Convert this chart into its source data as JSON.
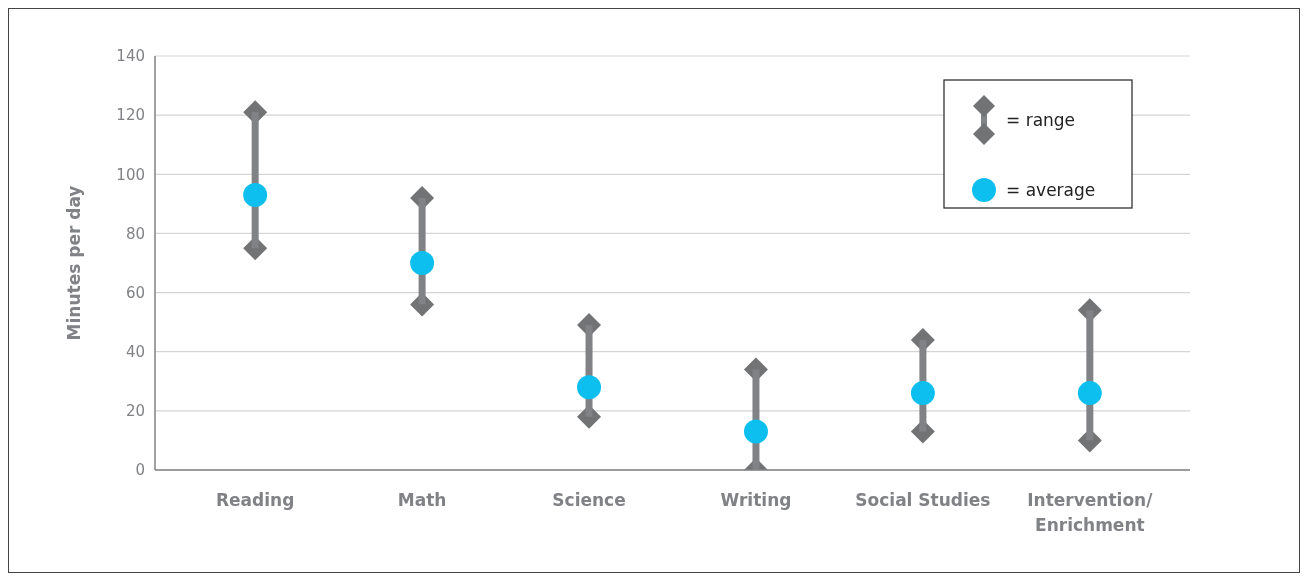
{
  "chart_data": {
    "type": "bar",
    "ylabel": "Minutes per day",
    "categories": [
      "Reading",
      "Math",
      "Science",
      "Writing",
      "Social Studies",
      "Intervention/Enrichment"
    ],
    "series": [
      {
        "name": "= range",
        "color": "#808285",
        "base": [
          75,
          56,
          18,
          0,
          13,
          10
        ],
        "values": [
          46,
          36,
          31,
          34,
          31,
          44
        ]
      },
      {
        "name": "= average",
        "type": "scatter",
        "color": "#0dbfef",
        "marker": "circle",
        "values": [
          93,
          70,
          28,
          13,
          26,
          26
        ]
      }
    ],
    "ylim": [
      0,
      140
    ],
    "yticks": [
      0,
      20,
      40,
      60,
      80,
      100,
      120,
      140
    ],
    "grid": "y",
    "legend": "top right"
  }
}
